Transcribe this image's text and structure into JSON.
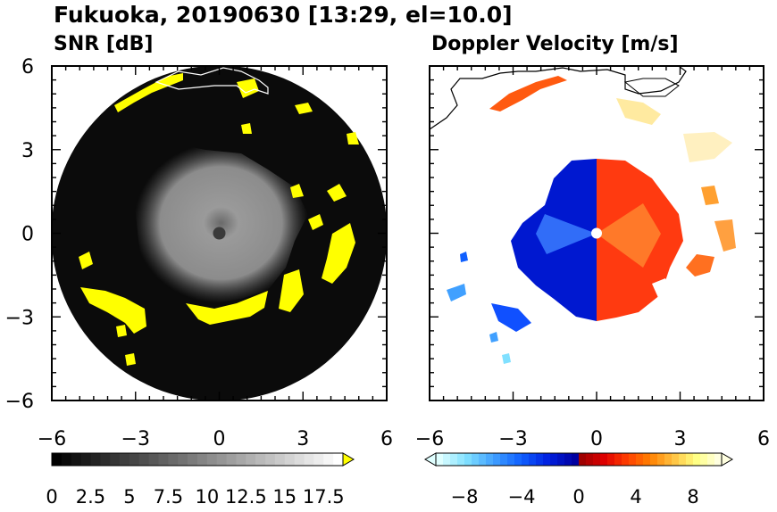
{
  "figure": {
    "title": "Fukuoka, 20190630 [13:29, el=10.0]"
  },
  "chart_data": [
    {
      "type": "heatmap",
      "title": "SNR [dB]",
      "xlabel": "",
      "ylabel": "",
      "xlim": [
        -6,
        6
      ],
      "ylim": [
        -6,
        6
      ],
      "x_ticks": [
        -6,
        -3,
        0,
        3,
        6
      ],
      "y_ticks": [
        -6,
        -3,
        0,
        3,
        6
      ],
      "x_tick_labels": [
        "−6",
        "−3",
        "0",
        "3",
        "6"
      ],
      "y_tick_labels": [
        "6",
        "3",
        "0",
        "−3",
        "−6"
      ],
      "radar_range": 6,
      "colorbar": {
        "min": 0,
        "max": 18.75,
        "steps": 30,
        "ticks": [
          0,
          2.5,
          5,
          7.5,
          10,
          12.5,
          15,
          17.5
        ],
        "tick_labels": [
          "0",
          "2.5",
          "5",
          "7.5",
          "10",
          "12.5",
          "15",
          "17.5"
        ],
        "color_low": "#000000",
        "color_high": "#ffffff",
        "over_color": "#ffff00",
        "over_triangle": "right"
      },
      "colors": {
        "background": "#0b0b0b",
        "strong_echo": "#ffff00",
        "center_gray": "#8a8a8a"
      }
    },
    {
      "type": "heatmap",
      "title": "Doppler Velocity [m/s]",
      "xlabel": "",
      "ylabel": "",
      "xlim": [
        -6,
        6
      ],
      "ylim": [
        -6,
        6
      ],
      "x_ticks": [
        -6,
        -3,
        0,
        3,
        6
      ],
      "y_ticks": [
        -6,
        -3,
        0,
        3,
        6
      ],
      "x_tick_labels": [
        "−6",
        "−3",
        "0",
        "3",
        "6"
      ],
      "y_tick_labels": [
        "6",
        "3",
        "0",
        "−3",
        "−6"
      ],
      "colorbar": {
        "min": -10,
        "max": 10,
        "steps": 40,
        "ticks": [
          -8,
          -4,
          0,
          4,
          8
        ],
        "tick_labels": [
          "−8",
          "−4",
          "0",
          "4",
          "8"
        ],
        "colors_negative": [
          "#e0ffff",
          "#80e0ff",
          "#40a0ff",
          "#1060ff",
          "#0020e0",
          "#0000a0"
        ],
        "colors_positive": [
          "#a00000",
          "#e00000",
          "#ff4000",
          "#ff8000",
          "#ffc040",
          "#ffff80",
          "#ffffe0"
        ],
        "under_triangle": "left",
        "over_triangle": "right"
      },
      "colors": {
        "toward": "#0018d0",
        "away": "#ff3a10",
        "far_positive": "#ffe080"
      }
    }
  ]
}
